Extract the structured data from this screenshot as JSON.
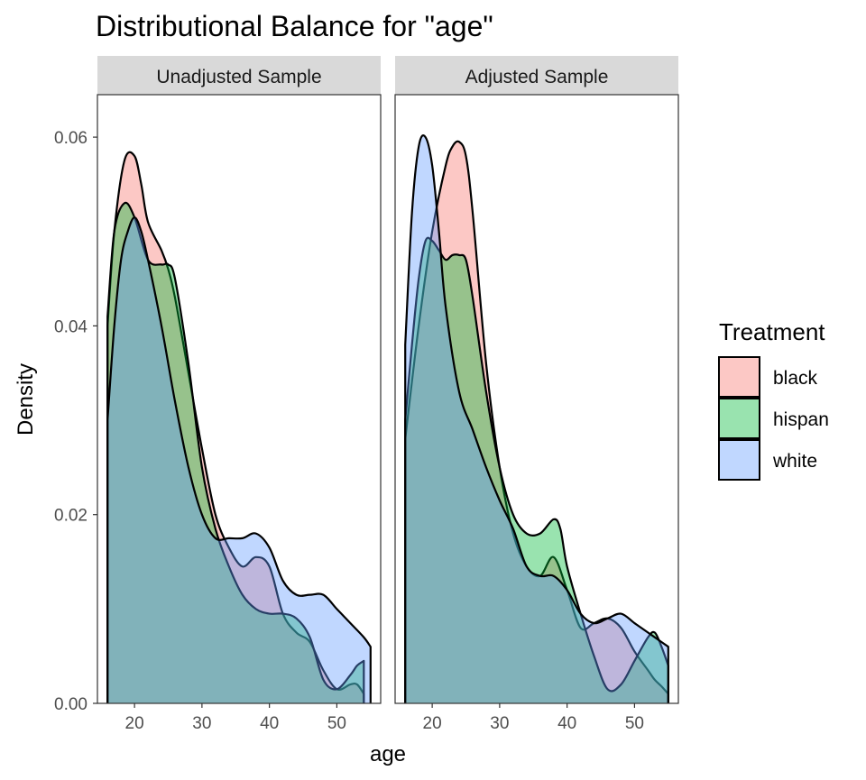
{
  "chart_data": {
    "type": "area",
    "title": "Distributional Balance for \"age\"",
    "xlabel": "age",
    "ylabel": "Density",
    "x_ticks": [
      20,
      30,
      40,
      50
    ],
    "y_ticks": [
      "0.00",
      "0.02",
      "0.04",
      "0.06"
    ],
    "xlim": [
      14.5,
      56.5
    ],
    "ylim": [
      0,
      0.0645
    ],
    "grid": false,
    "legend": {
      "title": "Treatment",
      "placement": "right",
      "items": [
        {
          "label": "black",
          "color": "#F8766D"
        },
        {
          "label": "hispan",
          "color": "#00BA38"
        },
        {
          "label": "white",
          "color": "#619CFF"
        }
      ]
    },
    "panels": [
      {
        "label": "Unadjusted Sample",
        "series": [
          {
            "name": "black",
            "color": "#F8766D",
            "x": [
              16,
              17,
              18.5,
              20,
              21,
              22,
              24,
              25,
              26,
              28,
              30,
              32,
              34,
              36,
              38,
              40,
              42,
              44,
              46,
              48,
              50,
              52,
              53,
              54
            ],
            "y": [
              0.04,
              0.05,
              0.0575,
              0.058,
              0.055,
              0.051,
              0.048,
              0.046,
              0.043,
              0.035,
              0.027,
              0.02,
              0.0165,
              0.0145,
              0.0155,
              0.0145,
              0.0095,
              0.0075,
              0.0065,
              0.0035,
              0.0015,
              0.002,
              0.002,
              0.001
            ]
          },
          {
            "name": "hispan",
            "color": "#00BA38",
            "x": [
              16,
              17,
              18.5,
              20,
              22,
              24,
              25,
              26,
              28,
              30,
              32,
              34,
              36,
              38,
              40,
              42,
              44,
              46,
              48,
              50,
              52,
              53,
              54
            ],
            "y": [
              0.041,
              0.05,
              0.053,
              0.0515,
              0.047,
              0.0465,
              0.0465,
              0.045,
              0.036,
              0.025,
              0.0185,
              0.0145,
              0.0115,
              0.01,
              0.0095,
              0.0095,
              0.009,
              0.007,
              0.0025,
              0.0015,
              0.003,
              0.004,
              0.0045
            ]
          },
          {
            "name": "white",
            "color": "#619CFF",
            "x": [
              16,
              17,
              18,
              19,
              20,
              21,
              22,
              24,
              26,
              28,
              30,
              32,
              34,
              36,
              38,
              40,
              42,
              44,
              46,
              48,
              50,
              52,
              54,
              55
            ],
            "y": [
              0.03,
              0.04,
              0.047,
              0.05,
              0.0515,
              0.05,
              0.047,
              0.04,
              0.032,
              0.025,
              0.02,
              0.0175,
              0.0175,
              0.0175,
              0.018,
              0.0165,
              0.013,
              0.0115,
              0.0115,
              0.0115,
              0.01,
              0.0085,
              0.007,
              0.006
            ]
          }
        ]
      },
      {
        "label": "Adjusted Sample",
        "series": [
          {
            "name": "black",
            "color": "#F8766D",
            "x": [
              16,
              18,
              20,
              22,
              23,
              24,
              25,
              26,
              28,
              30,
              32,
              34,
              36,
              38,
              40,
              42,
              44,
              46,
              48,
              50,
              52,
              53,
              54,
              55
            ],
            "y": [
              0.028,
              0.04,
              0.05,
              0.057,
              0.059,
              0.0595,
              0.058,
              0.052,
              0.036,
              0.025,
              0.018,
              0.0145,
              0.0135,
              0.0155,
              0.012,
              0.008,
              0.0085,
              0.009,
              0.008,
              0.0055,
              0.0035,
              0.0025,
              0.0018,
              0.001
            ]
          },
          {
            "name": "hispan",
            "color": "#00BA38",
            "x": [
              16,
              17,
              18,
              19,
              20,
              21,
              22,
              23,
              24,
              25,
              26,
              28,
              30,
              32,
              34,
              36,
              38,
              39,
              40,
              42,
              44,
              46,
              48,
              50,
              52,
              53,
              54,
              55
            ],
            "y": [
              0.03,
              0.038,
              0.045,
              0.049,
              0.049,
              0.048,
              0.047,
              0.0475,
              0.0475,
              0.047,
              0.043,
              0.033,
              0.025,
              0.02,
              0.018,
              0.018,
              0.0195,
              0.0185,
              0.0145,
              0.0095,
              0.005,
              0.0015,
              0.002,
              0.0045,
              0.007,
              0.0075,
              0.006,
              0.004
            ]
          },
          {
            "name": "white",
            "color": "#619CFF",
            "x": [
              16,
              17,
              18,
              19,
              20,
              21,
              22,
              24,
              26,
              28,
              30,
              32,
              34,
              36,
              38,
              40,
              42,
              44,
              46,
              48,
              50,
              52,
              54,
              55
            ],
            "y": [
              0.038,
              0.052,
              0.059,
              0.06,
              0.057,
              0.05,
              0.042,
              0.033,
              0.029,
              0.025,
              0.0215,
              0.0185,
              0.0145,
              0.0135,
              0.0135,
              0.012,
              0.0095,
              0.0085,
              0.009,
              0.0095,
              0.0085,
              0.0075,
              0.0065,
              0.006
            ]
          }
        ]
      }
    ]
  }
}
